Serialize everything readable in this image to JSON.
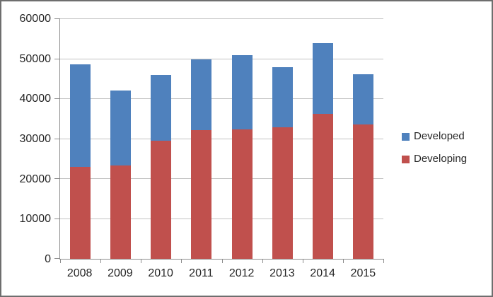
{
  "chart_data": {
    "type": "bar",
    "stacked": true,
    "title": "",
    "xlabel": "",
    "ylabel": "",
    "categories": [
      "2008",
      "2009",
      "2010",
      "2011",
      "2012",
      "2013",
      "2014",
      "2015"
    ],
    "series": [
      {
        "name": "Developing",
        "color": "#c0504d",
        "values": [
          23000,
          23300,
          29500,
          32200,
          32400,
          33000,
          36200,
          33600
        ]
      },
      {
        "name": "Developed",
        "color": "#4f81bd",
        "values": [
          25700,
          18900,
          16500,
          17800,
          18600,
          15000,
          17800,
          12600
        ]
      }
    ],
    "stack_totals": [
      48700,
      42200,
      46000,
      50000,
      51000,
      48000,
      54000,
      46200
    ],
    "ylim": [
      0,
      60000
    ],
    "yticks": [
      0,
      10000,
      20000,
      30000,
      40000,
      50000,
      60000
    ],
    "grid": true,
    "legend_position": "right"
  },
  "legend": {
    "items": [
      {
        "label": "Developed",
        "color": "#4f81bd"
      },
      {
        "label": "Developing",
        "color": "#c0504d"
      }
    ]
  },
  "colors": {
    "bar_blue": "#4f81bd",
    "bar_red": "#c0504d",
    "gridline": "#c3c3c3",
    "axis": "#8c8c8c",
    "text": "#262626",
    "frame_border": "#6e6e6e",
    "background": "#ffffff"
  }
}
